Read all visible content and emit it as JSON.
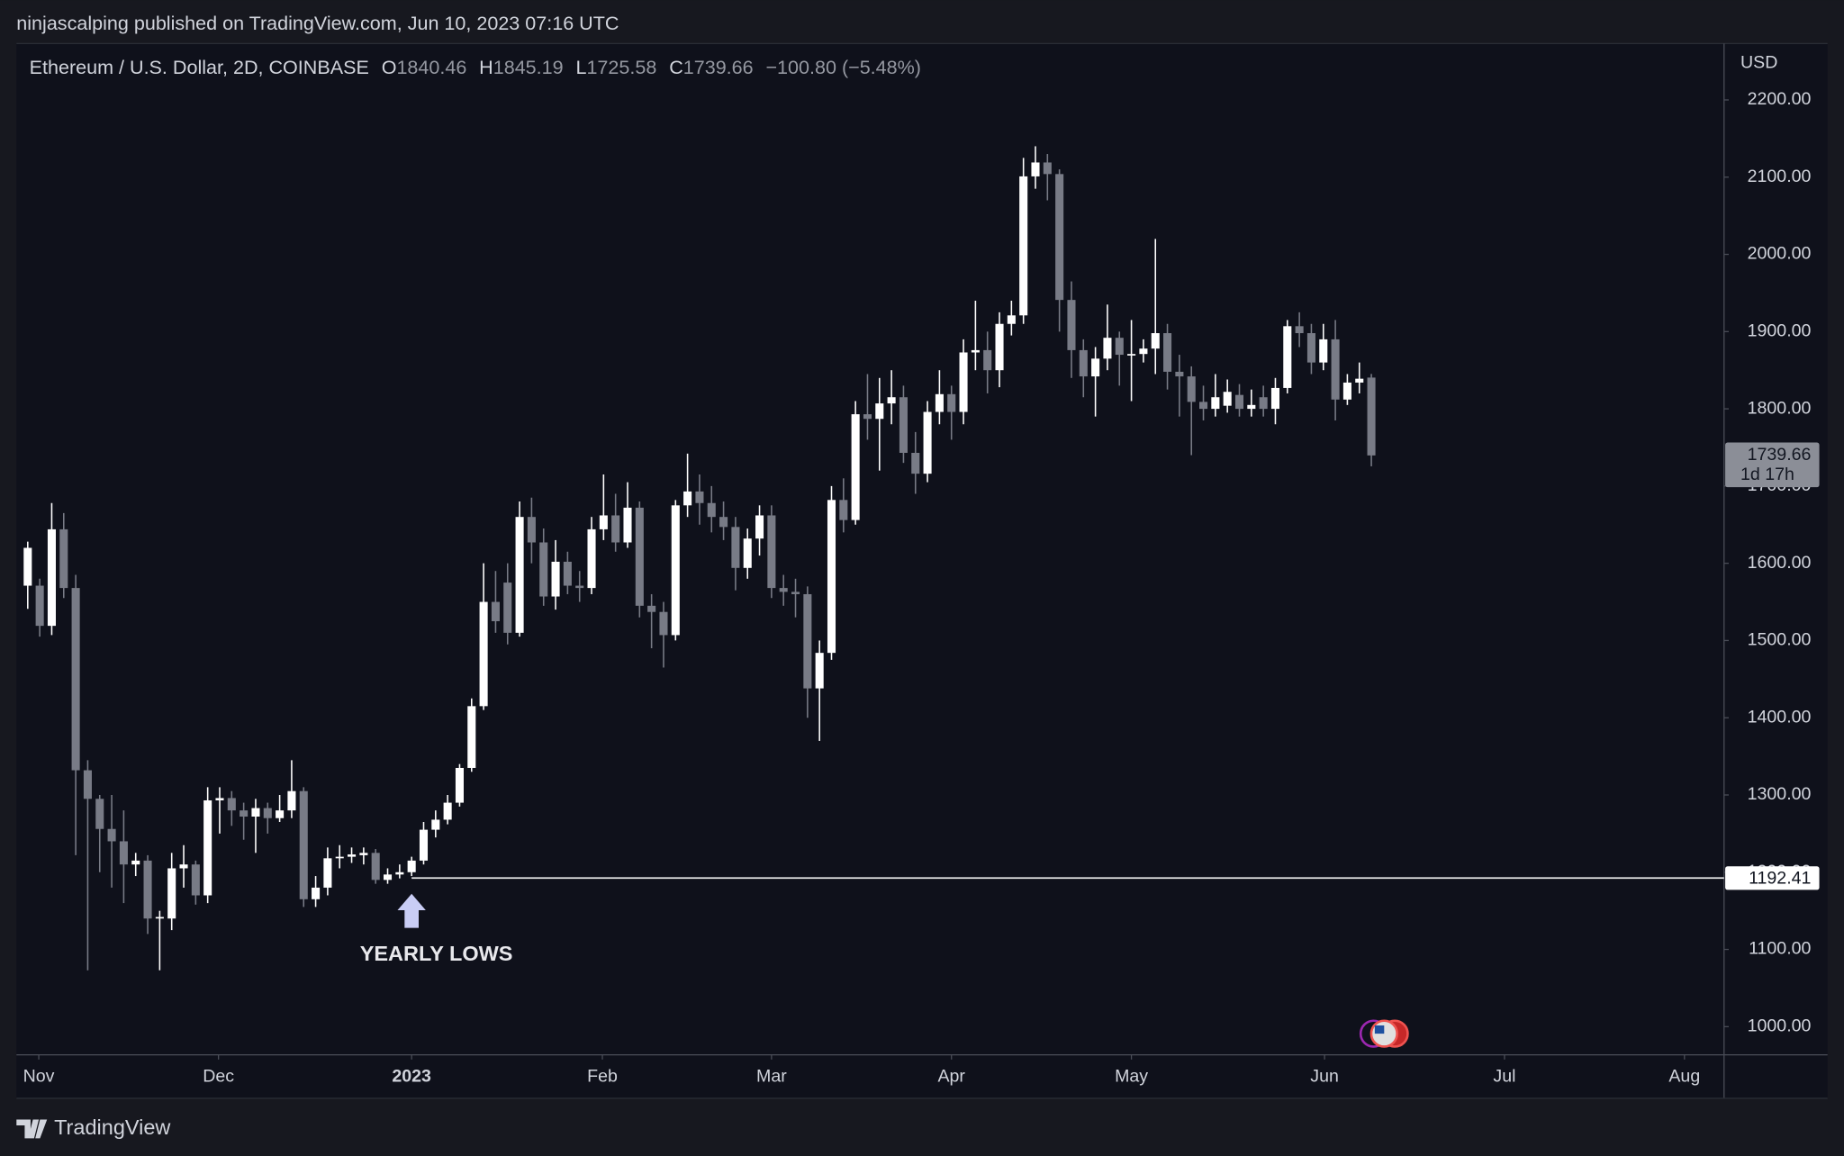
{
  "header": {
    "publisher": "ninjascalping published on TradingView.com, Jun 10, 2023 07:16 UTC"
  },
  "footer": {
    "brand": "TradingView"
  },
  "chart_data": {
    "type": "candlestick",
    "title": "Ethereum / U.S. Dollar, 2D, COINBASE",
    "ohlc_letters": [
      "O",
      "H",
      "L",
      "C"
    ],
    "change_label": "−100.80 (−5.48%)",
    "y_axis_unit": "USD",
    "last_price_countdown": "1d 17h",
    "x": [
      0,
      1,
      2,
      3,
      4,
      5,
      6,
      7,
      8,
      9,
      10,
      11,
      12,
      13,
      14,
      15,
      16,
      17,
      18,
      19,
      20,
      21,
      22,
      23,
      24,
      25,
      26,
      27,
      28,
      29,
      30,
      31,
      32,
      33,
      34,
      35,
      36,
      37,
      38,
      39,
      40,
      41,
      42,
      43,
      44,
      45,
      46,
      47,
      48,
      49,
      50,
      51,
      52,
      53,
      54,
      55,
      56,
      57,
      58,
      59,
      60,
      61,
      62,
      63,
      64,
      65,
      66,
      67,
      68,
      69,
      70,
      71,
      72,
      73,
      74,
      75,
      76,
      77,
      78,
      79,
      80,
      81,
      82,
      83,
      84,
      85,
      86,
      87,
      88,
      89,
      90,
      91,
      92,
      93,
      94,
      95,
      96,
      97,
      98,
      99,
      100,
      101,
      102,
      103,
      104,
      105,
      106,
      107,
      108,
      109,
      110,
      111,
      112
    ],
    "series": [
      {
        "up_color": "#ffffff",
        "down_color": "#787b86",
        "open": [
          1571,
          1571,
          1519,
          1644,
          1568,
          1332,
          1295,
          1256,
          1240,
          1210,
          1215,
          1140,
          1140,
          1205,
          1210,
          1170,
          1293,
          1296,
          1280,
          1272,
          1283,
          1270,
          1280,
          1305,
          1165,
          1180,
          1218,
          1220,
          1222,
          1225,
          1190,
          1197,
          1200,
          1215,
          1255,
          1268,
          1290,
          1335,
          1415,
          1550,
          1575,
          1510,
          1660,
          1627,
          1557,
          1602,
          1571,
          1568,
          1644,
          1662,
          1627,
          1672,
          1545,
          1537,
          1507,
          1675,
          1693,
          1678,
          1660,
          1647,
          1594,
          1632,
          1662,
          1568,
          1563,
          1560,
          1438,
          1484,
          1682,
          1656,
          1793,
          1787,
          1807,
          1815,
          1743,
          1716,
          1796,
          1819,
          1796,
          1873,
          1876,
          1850,
          1910,
          1921,
          2101,
          2119,
          2104,
          1941,
          1876,
          1842,
          1865,
          1892,
          1869,
          1871,
          1878,
          1898,
          1848,
          1842,
          1809,
          1800,
          1804,
          1818,
          1800,
          1815,
          1800,
          1827,
          1907,
          1898,
          1860,
          1890,
          1812,
          1834,
          1840.46
        ],
        "high": [
          1628,
          1580,
          1678,
          1665,
          1585,
          1345,
          1300,
          1300,
          1280,
          1225,
          1222,
          1150,
          1225,
          1235,
          1215,
          1310,
          1310,
          1305,
          1290,
          1295,
          1290,
          1300,
          1345,
          1310,
          1195,
          1232,
          1235,
          1232,
          1232,
          1230,
          1205,
          1210,
          1220,
          1265,
          1280,
          1300,
          1340,
          1425,
          1600,
          1590,
          1600,
          1680,
          1685,
          1645,
          1630,
          1615,
          1590,
          1660,
          1715,
          1690,
          1705,
          1680,
          1560,
          1550,
          1682,
          1742,
          1715,
          1700,
          1680,
          1660,
          1645,
          1675,
          1675,
          1585,
          1580,
          1570,
          1500,
          1700,
          1710,
          1810,
          1845,
          1840,
          1850,
          1830,
          1770,
          1810,
          1850,
          1830,
          1890,
          1940,
          1900,
          1925,
          1940,
          2125,
          2140,
          2130,
          2110,
          1965,
          1890,
          1880,
          1935,
          1900,
          1915,
          1890,
          2020,
          1910,
          1870,
          1855,
          1830,
          1845,
          1838,
          1832,
          1825,
          1830,
          1840,
          1915,
          1925,
          1910,
          1910,
          1915,
          1845,
          1860,
          1845.19
        ],
        "low": [
          1541,
          1505,
          1507,
          1555,
          1222,
          1073,
          1200,
          1180,
          1160,
          1195,
          1120,
          1073,
          1125,
          1180,
          1158,
          1160,
          1250,
          1260,
          1242,
          1225,
          1250,
          1265,
          1270,
          1155,
          1155,
          1170,
          1205,
          1212,
          1210,
          1185,
          1185,
          1192,
          1195,
          1210,
          1245,
          1262,
          1285,
          1330,
          1410,
          1510,
          1495,
          1505,
          1600,
          1545,
          1540,
          1560,
          1550,
          1560,
          1630,
          1615,
          1620,
          1530,
          1490,
          1465,
          1500,
          1660,
          1650,
          1640,
          1630,
          1565,
          1580,
          1610,
          1555,
          1545,
          1530,
          1400,
          1370,
          1475,
          1640,
          1650,
          1760,
          1720,
          1780,
          1730,
          1690,
          1705,
          1780,
          1760,
          1780,
          1850,
          1820,
          1828,
          1895,
          1910,
          2085,
          2070,
          1900,
          1840,
          1815,
          1790,
          1850,
          1830,
          1810,
          1860,
          1845,
          1825,
          1790,
          1740,
          1785,
          1790,
          1795,
          1790,
          1790,
          1790,
          1780,
          1820,
          1880,
          1845,
          1850,
          1785,
          1805,
          1820,
          1725.58
        ],
        "close": [
          1620,
          1519,
          1644,
          1568,
          1332,
          1295,
          1256,
          1240,
          1210,
          1215,
          1140,
          1142,
          1205,
          1210,
          1170,
          1293,
          1296,
          1280,
          1272,
          1283,
          1270,
          1280,
          1305,
          1165,
          1180,
          1218,
          1220,
          1223,
          1225,
          1190,
          1197,
          1200,
          1215,
          1255,
          1268,
          1290,
          1335,
          1415,
          1550,
          1525,
          1510,
          1660,
          1627,
          1557,
          1602,
          1571,
          1568,
          1644,
          1662,
          1627,
          1672,
          1545,
          1537,
          1507,
          1675,
          1693,
          1678,
          1660,
          1647,
          1594,
          1632,
          1662,
          1568,
          1563,
          1560,
          1438,
          1484,
          1682,
          1656,
          1793,
          1787,
          1807,
          1815,
          1743,
          1716,
          1796,
          1819,
          1796,
          1873,
          1876,
          1850,
          1910,
          1921,
          2101,
          2119,
          2104,
          1941,
          1876,
          1842,
          1865,
          1892,
          1870,
          1871,
          1878,
          1898,
          1848,
          1842,
          1809,
          1800,
          1815,
          1822,
          1800,
          1805,
          1800,
          1827,
          1907,
          1898,
          1860,
          1890,
          1812,
          1834,
          1839,
          1739.66
        ]
      }
    ],
    "xlim": [
      -0.94,
      141.4
    ],
    "xticks": [
      {
        "value": 0.92,
        "label": "Nov"
      },
      {
        "value": 15.9,
        "label": "Dec"
      },
      {
        "value": 32.0,
        "label": "2023"
      },
      {
        "value": 47.9,
        "label": "Feb"
      },
      {
        "value": 62.0,
        "label": "Mar"
      },
      {
        "value": 77.0,
        "label": "Apr"
      },
      {
        "value": 92.0,
        "label": "May"
      },
      {
        "value": 108.1,
        "label": "Jun"
      },
      {
        "value": 123.1,
        "label": "Jul"
      },
      {
        "value": 138.1,
        "label": "Aug"
      }
    ],
    "ylim": [
      963.5,
      2273
    ],
    "yticks": [
      {
        "value": 1000,
        "label": "1000.00"
      },
      {
        "value": 1100,
        "label": "1100.00"
      },
      {
        "value": 1200,
        "label": "1200.00"
      },
      {
        "value": 1300,
        "label": "1300.00"
      },
      {
        "value": 1400,
        "label": "1400.00"
      },
      {
        "value": 1500,
        "label": "1500.00"
      },
      {
        "value": 1600,
        "label": "1600.00"
      },
      {
        "value": 1700,
        "label": "1700.00"
      },
      {
        "value": 1800,
        "label": "1800.00"
      },
      {
        "value": 1900,
        "label": "1900.00"
      },
      {
        "value": 2000,
        "label": "2000.00"
      },
      {
        "value": 2100,
        "label": "2100.00"
      },
      {
        "value": 2200,
        "label": "2200.00"
      }
    ],
    "grid": false,
    "annotations": [
      {
        "type": "hline",
        "value": 1192.41
      },
      {
        "type": "arrow",
        "x": 32,
        "text": "YEARLY LOWS"
      }
    ]
  }
}
